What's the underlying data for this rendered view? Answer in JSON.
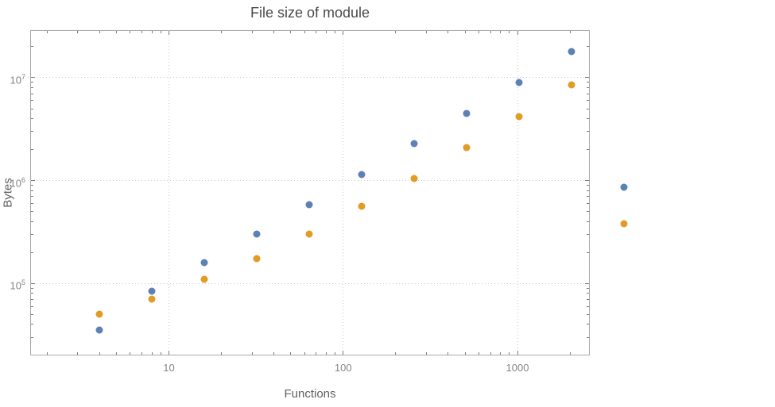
{
  "chart_data": {
    "type": "scatter",
    "title": "File size of module",
    "xlabel": "Functions",
    "ylabel": "Bytes",
    "x_scale": "log",
    "y_scale": "log",
    "xlim": [
      1.6,
      2600
    ],
    "ylim": [
      20000,
      29000000
    ],
    "x_ticks": [
      10,
      100,
      1000
    ],
    "x_tick_labels": [
      "10",
      "100",
      "1000"
    ],
    "y_ticks": [
      100000,
      1000000,
      10000000
    ],
    "y_tick_labels": [
      "10^5",
      "10^6",
      "10^7"
    ],
    "grid": "dotted",
    "legend": "none",
    "frame": true,
    "series": [
      {
        "name": "blue",
        "color": "#5e81b5",
        "points": [
          [
            4,
            35000
          ],
          [
            8,
            85000
          ],
          [
            16,
            160000
          ],
          [
            32,
            300000
          ],
          [
            64,
            580000
          ],
          [
            128,
            1150000
          ],
          [
            256,
            2300000
          ],
          [
            512,
            4500000
          ],
          [
            1024,
            9000000
          ],
          [
            2048,
            18000000
          ],
          [
            4096,
            870000
          ]
        ]
      },
      {
        "name": "orange",
        "color": "#e19c24",
        "points": [
          [
            4,
            50000
          ],
          [
            8,
            70000
          ],
          [
            16,
            110000
          ],
          [
            32,
            175000
          ],
          [
            64,
            300000
          ],
          [
            128,
            560000
          ],
          [
            256,
            1050000
          ],
          [
            512,
            2100000
          ],
          [
            1024,
            4200000
          ],
          [
            2048,
            8500000
          ],
          [
            4096,
            380000
          ]
        ]
      }
    ]
  }
}
